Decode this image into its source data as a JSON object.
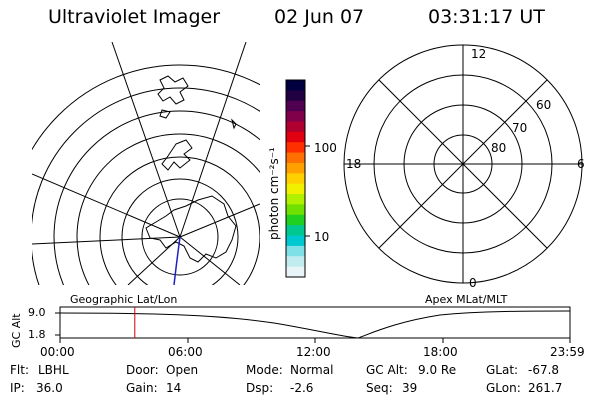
{
  "header": {
    "instrument": "Ultraviolet Imager",
    "date": "02 Jun 07",
    "time": "03:31:17 UT"
  },
  "colorbar": {
    "unit": "photon cm⁻²s⁻¹",
    "ticks": [
      "100",
      "10"
    ],
    "colors": [
      "#000040",
      "#200040",
      "#500050",
      "#80004a",
      "#b00030",
      "#e00010",
      "#ff3000",
      "#ff7000",
      "#ffa000",
      "#ffd000",
      "#f0f000",
      "#b0f000",
      "#70e000",
      "#20d020",
      "#00c890",
      "#00c8d0",
      "#80e0e8",
      "#c0ecf0",
      "#e8f4f8"
    ]
  },
  "maps": {
    "left_title": "Geographic Lat/Lon",
    "right_title": "Apex MLat/MLT"
  },
  "polar": {
    "mlt_labels": {
      "top": "12",
      "left": "18",
      "right": "6",
      "bottom": "0"
    },
    "lat_labels": [
      "60",
      "70",
      "80"
    ]
  },
  "altitude_plot": {
    "ylabel": "GC Alt",
    "yticks": [
      "9.0",
      "1.8"
    ],
    "xticks": [
      "00:00",
      "06:00",
      "12:00",
      "18:00",
      "23:59"
    ],
    "marker_time_hours": 3.52,
    "marker_color": "#d00000"
  },
  "status": {
    "row1": [
      {
        "key": "Flt:",
        "value": "LBHL"
      },
      {
        "key": "Door:",
        "value": "Open"
      },
      {
        "key": "Mode:",
        "value": "Normal"
      },
      {
        "key": "GC Alt:",
        "value": "9.0 Re"
      },
      {
        "key": "GLat:",
        "value": "-67.8"
      }
    ],
    "row2": [
      {
        "key": "IP:",
        "value": "36.0"
      },
      {
        "key": "Gain:",
        "value": "14"
      },
      {
        "key": "Dsp:",
        "value": "-2.6"
      },
      {
        "key": "Seq:",
        "value": "39"
      },
      {
        "key": "GLon:",
        "value": "261.7"
      }
    ]
  }
}
